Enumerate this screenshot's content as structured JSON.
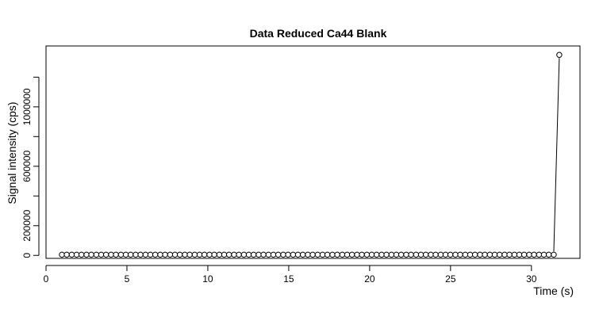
{
  "chart_data": {
    "type": "scatter",
    "title": "Data Reduced Ca44 Blank",
    "xlabel": "Time (s)",
    "ylabel": "Signal intensity (cps)",
    "xlim": [
      0,
      33
    ],
    "ylim": [
      -20000,
      1410000
    ],
    "x_ticks": [
      0,
      5,
      10,
      15,
      20,
      25,
      30
    ],
    "x_tick_labels": [
      "0",
      "5",
      "10",
      "15",
      "20",
      "25",
      "30"
    ],
    "y_ticks": [
      0,
      200000,
      400000,
      600000,
      800000,
      1000000,
      1200000
    ],
    "y_tick_labels": [
      "0",
      "200000",
      "",
      "600000",
      "",
      "1000000",
      ""
    ],
    "point_style": "open-circle",
    "connected_segment": "last-two-points",
    "series": [
      {
        "x": [
          0.98,
          1.28,
          1.59,
          1.89,
          2.19,
          2.5,
          2.8,
          3.11,
          3.41,
          3.71,
          4.02,
          4.32,
          4.63,
          4.93,
          5.23,
          5.54,
          5.84,
          6.15,
          6.45,
          6.75,
          7.06,
          7.36,
          7.67,
          7.97,
          8.27,
          8.58,
          8.88,
          9.19,
          9.49,
          9.79,
          10.1,
          10.4,
          10.71,
          11.01,
          11.31,
          11.62,
          11.92,
          12.23,
          12.53,
          12.83,
          13.14,
          13.44,
          13.75,
          14.05,
          14.35,
          14.66,
          14.96,
          15.27,
          15.57,
          15.87,
          16.18,
          16.48,
          16.79,
          17.09,
          17.39,
          17.7,
          18,
          18.31,
          18.61,
          18.91,
          19.22,
          19.52,
          19.83,
          20.13,
          20.43,
          20.74,
          21.04,
          21.35,
          21.65,
          21.95,
          22.26,
          22.56,
          22.87,
          23.17,
          23.47,
          23.78,
          24.08,
          24.39,
          24.69,
          24.99,
          25.3,
          25.6,
          25.91,
          26.21,
          26.51,
          26.82,
          27.12,
          27.43,
          27.73,
          28.03,
          28.34,
          28.64,
          28.95,
          29.25,
          29.55,
          29.86,
          30.16,
          30.47,
          30.77,
          31.07,
          31.38,
          31.72
        ],
        "y": [
          5000,
          5000,
          5000,
          5000,
          5000,
          5000,
          5000,
          5000,
          5000,
          5000,
          5000,
          5000,
          5000,
          5000,
          5000,
          5000,
          5000,
          5000,
          5000,
          5000,
          5000,
          5000,
          5000,
          5000,
          5000,
          5000,
          5000,
          5000,
          5000,
          5000,
          5000,
          5000,
          5000,
          5000,
          5000,
          5000,
          5000,
          5000,
          5000,
          5000,
          5000,
          5000,
          5000,
          5000,
          5000,
          5000,
          5000,
          5000,
          5000,
          5000,
          5000,
          5000,
          5000,
          5000,
          5000,
          5000,
          5000,
          5000,
          5000,
          5000,
          5000,
          5000,
          5000,
          5000,
          5000,
          5000,
          5000,
          5000,
          5000,
          5000,
          5000,
          5000,
          5000,
          5000,
          5000,
          5000,
          5000,
          5000,
          5000,
          5000,
          5000,
          5000,
          5000,
          5000,
          5000,
          5000,
          5000,
          5000,
          5000,
          5000,
          5000,
          5000,
          5000,
          5000,
          5000,
          5000,
          5000,
          5000,
          5000,
          5000,
          5000,
          1350000
        ]
      }
    ]
  }
}
